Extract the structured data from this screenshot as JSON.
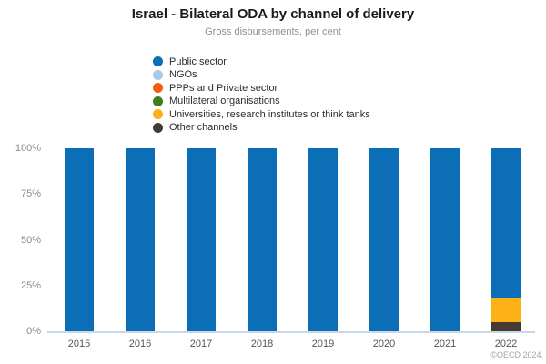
{
  "title": "Israel - Bilateral ODA by channel of delivery",
  "subtitle": "Gross disbursements, per cent",
  "footer": "©OECD 2024.",
  "colors": {
    "public_sector": "#0d6eb8",
    "ngos": "#abc9e9",
    "ppps_private": "#f85b10",
    "multilateral": "#3e7e1e",
    "universities": "#fcb116",
    "other_channels": "#463a30",
    "axis_line": "#c9d7ea"
  },
  "chart_data": {
    "type": "bar",
    "stacked": true,
    "title": "Israel - Bilateral ODA by channel of delivery",
    "subtitle": "Gross disbursements, per cent",
    "xlabel": "",
    "ylabel": "",
    "ylim": [
      0,
      100
    ],
    "grid": false,
    "legend_position": "top-left",
    "categories": [
      "2015",
      "2016",
      "2017",
      "2018",
      "2019",
      "2020",
      "2021",
      "2022"
    ],
    "series": [
      {
        "name": "Public sector",
        "color": "#0d6eb8",
        "values": [
          100,
          100,
          100,
          100,
          100,
          100,
          100,
          82
        ]
      },
      {
        "name": "NGOs",
        "color": "#abc9e9",
        "values": [
          0,
          0,
          0,
          0,
          0,
          0,
          0,
          0
        ]
      },
      {
        "name": "PPPs and Private sector",
        "color": "#f85b10",
        "values": [
          0,
          0,
          0,
          0,
          0,
          0,
          0,
          0
        ]
      },
      {
        "name": "Multilateral organisations",
        "color": "#3e7e1e",
        "values": [
          0,
          0,
          0,
          0,
          0,
          0,
          0,
          0
        ]
      },
      {
        "name": "Universities, research institutes or think tanks",
        "color": "#fcb116",
        "values": [
          0,
          0,
          0,
          0,
          0,
          0,
          0,
          13
        ]
      },
      {
        "name": "Other channels",
        "color": "#463a30",
        "values": [
          0,
          0,
          0,
          0,
          0,
          0,
          0,
          5
        ]
      }
    ],
    "y_ticks": [
      {
        "value": 0,
        "label": "0%"
      },
      {
        "value": 25,
        "label": "25%"
      },
      {
        "value": 50,
        "label": "50%"
      },
      {
        "value": 75,
        "label": "75%"
      },
      {
        "value": 100,
        "label": "100%"
      }
    ]
  }
}
